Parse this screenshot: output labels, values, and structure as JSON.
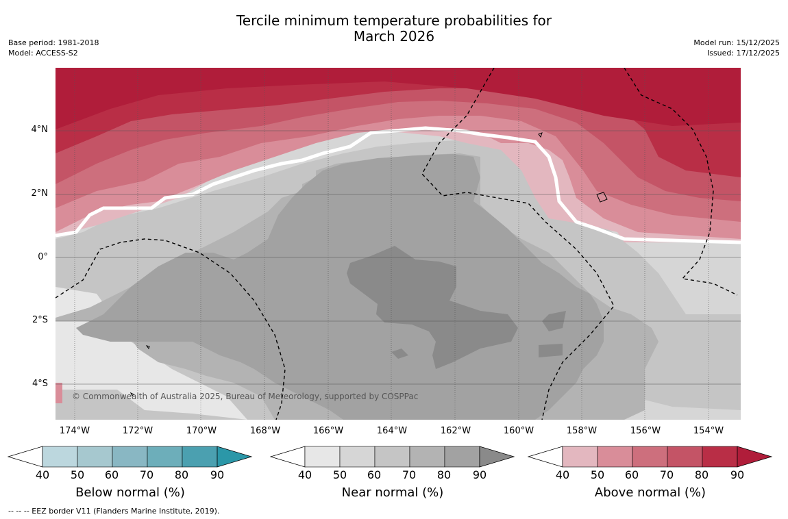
{
  "title": [
    "Tercile minimum temperature probabilities for",
    "March 2026"
  ],
  "base_period": "Base period: 1981-2018",
  "model": "Model: ACCESS-S2",
  "model_run": "Model run: 15/12/2025",
  "issued": "Issued: 17/12/2025",
  "copyright": "© Commonwealth of Australia 2025, Bureau of Meteorology, supported by COSPPac",
  "footnote": "--  --  -- EEZ border V11 (Flanders Marine Institute, 2019).",
  "lat_labels": [
    "4°N",
    "2°N",
    "0°",
    "2°S",
    "4°S"
  ],
  "lon_labels": [
    "174°W",
    "172°W",
    "170°W",
    "168°W",
    "166°W",
    "164°W",
    "162°W",
    "160°W",
    "158°W",
    "156°W",
    "154°W"
  ],
  "colorbars": [
    {
      "title": "Below normal (%)",
      "ticks": [
        "40",
        "50",
        "60",
        "70",
        "80",
        "90"
      ],
      "colors": [
        "#bcd7de",
        "#a6c8cf",
        "#89b7c3",
        "#6daeba",
        "#4ba0b0",
        "#2b97a8"
      ]
    },
    {
      "title": "Near normal (%)",
      "ticks": [
        "40",
        "50",
        "60",
        "70",
        "80",
        "90"
      ],
      "colors": [
        "#e7e7e7",
        "#d6d6d6",
        "#c5c5c5",
        "#b3b3b3",
        "#a2a2a2",
        "#8a8a8a"
      ]
    },
    {
      "title": "Above normal (%)",
      "ticks": [
        "40",
        "50",
        "60",
        "70",
        "80",
        "90"
      ],
      "colors": [
        "#e3b7bf",
        "#d98d99",
        "#cd6f7d",
        "#c45466",
        "#b92e46",
        "#b01d3a"
      ]
    }
  ]
}
